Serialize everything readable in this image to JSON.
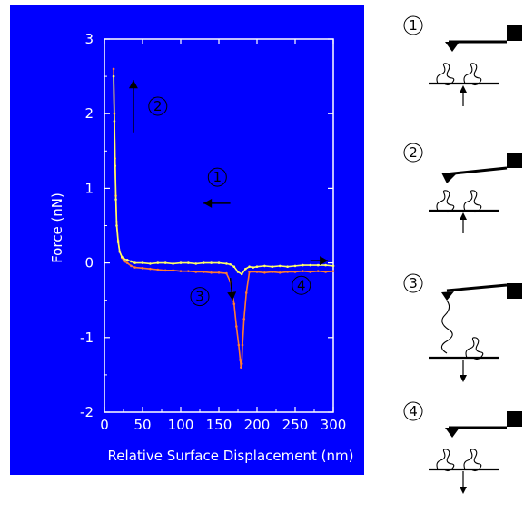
{
  "chart_data": {
    "type": "line",
    "title": "",
    "xlabel": "Relative Surface Displacement (nm)",
    "ylabel": "Force  (nN)",
    "xlim": [
      0,
      300
    ],
    "ylim": [
      -2,
      3
    ],
    "x_ticks": [
      "0",
      "50",
      "100",
      "150",
      "200",
      "250",
      "300"
    ],
    "y_ticks": [
      "3",
      "2",
      "1",
      "0",
      "-1",
      "-2"
    ],
    "grid": false,
    "background_color": "#0000FF",
    "series": [
      {
        "color": "#FF7A33",
        "x": [
          12,
          13,
          14,
          15,
          16,
          18,
          20,
          23,
          26,
          30,
          35,
          40,
          50,
          60,
          70,
          80,
          90,
          100,
          110,
          120,
          130,
          140,
          150,
          160,
          165,
          170,
          173,
          176,
          178,
          179,
          180,
          181,
          183,
          186,
          190,
          200,
          210,
          220,
          230,
          240,
          250,
          260,
          270,
          280,
          290,
          300
        ],
        "y": [
          2.6,
          2.0,
          1.4,
          0.9,
          0.55,
          0.3,
          0.15,
          0.07,
          0.02,
          0.0,
          -0.04,
          -0.06,
          -0.07,
          -0.08,
          -0.09,
          -0.1,
          -0.1,
          -0.11,
          -0.11,
          -0.12,
          -0.12,
          -0.13,
          -0.13,
          -0.14,
          -0.25,
          -0.55,
          -0.85,
          -1.1,
          -1.3,
          -1.4,
          -1.35,
          -1.1,
          -0.75,
          -0.4,
          -0.12,
          -0.12,
          -0.13,
          -0.12,
          -0.13,
          -0.12,
          -0.12,
          -0.11,
          -0.12,
          -0.11,
          -0.12,
          -0.11
        ]
      },
      {
        "color": "#FFFF66",
        "x": [
          12,
          13,
          14,
          15,
          16,
          18,
          20,
          23,
          26,
          30,
          35,
          40,
          50,
          60,
          70,
          80,
          90,
          100,
          110,
          120,
          130,
          140,
          150,
          160,
          165,
          170,
          175,
          180,
          185,
          190,
          195,
          200,
          210,
          220,
          230,
          240,
          250,
          260,
          270,
          280,
          290,
          300
        ],
        "y": [
          2.5,
          1.9,
          1.3,
          0.85,
          0.5,
          0.28,
          0.15,
          0.08,
          0.05,
          0.04,
          0.02,
          0.0,
          0.0,
          -0.01,
          0.0,
          0.0,
          -0.01,
          0.0,
          0.0,
          -0.01,
          0.0,
          0.0,
          0.0,
          -0.01,
          -0.02,
          -0.05,
          -0.12,
          -0.15,
          -0.08,
          -0.05,
          -0.06,
          -0.05,
          -0.04,
          -0.05,
          -0.04,
          -0.05,
          -0.04,
          -0.03,
          -0.03,
          -0.03,
          -0.03,
          -0.04
        ]
      }
    ],
    "annotations": [
      {
        "text": "①",
        "x": 148,
        "y": 1.15,
        "arrow": "left",
        "arrow_x": [
          130,
          165
        ],
        "arrow_y": [
          0.8,
          0.8
        ]
      },
      {
        "text": "②",
        "x": 70,
        "y": 2.1,
        "arrow": "up",
        "arrow_x": [
          38,
          38
        ],
        "arrow_y": [
          1.75,
          2.45
        ]
      },
      {
        "text": "③",
        "x": 125,
        "y": -0.45,
        "arrow": "down",
        "arrow_x": [
          165,
          168
        ],
        "arrow_y": [
          -0.2,
          -0.5
        ]
      },
      {
        "text": "④",
        "x": 258,
        "y": -0.3,
        "arrow": "right",
        "arrow_x": [
          270,
          293
        ],
        "arrow_y": [
          0.03,
          0.03
        ]
      }
    ]
  },
  "schematic": {
    "steps": [
      {
        "label": "①",
        "direction": "up"
      },
      {
        "label": "②",
        "direction": "up"
      },
      {
        "label": "③",
        "direction": "down"
      },
      {
        "label": "④",
        "direction": "down"
      }
    ]
  }
}
